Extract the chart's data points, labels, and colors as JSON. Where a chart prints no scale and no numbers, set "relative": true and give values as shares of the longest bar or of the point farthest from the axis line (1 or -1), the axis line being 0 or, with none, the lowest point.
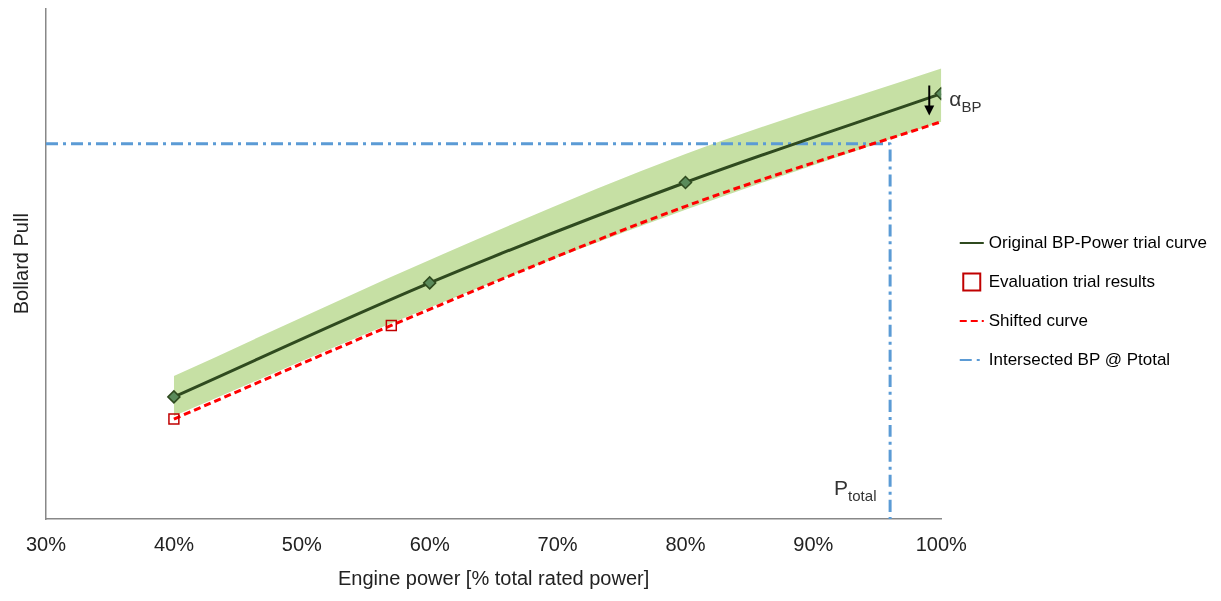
{
  "chart_data": {
    "type": "line",
    "xlabel": "Engine power [% total rated power]",
    "ylabel": "Bollard Pull",
    "relative": true,
    "xlim": [
      30,
      100
    ],
    "xticks": [
      {
        "value": 30,
        "label": "30%"
      },
      {
        "value": 40,
        "label": "40%"
      },
      {
        "value": 50,
        "label": "50%"
      },
      {
        "value": 60,
        "label": "60%"
      },
      {
        "value": 70,
        "label": "70%"
      },
      {
        "value": 80,
        "label": "80%"
      },
      {
        "value": 90,
        "label": "90%"
      },
      {
        "value": 100,
        "label": "100%"
      }
    ],
    "grid": false,
    "legend": "right",
    "series": [
      {
        "name": "Original BP-Power trial curve",
        "color": "#2f4a1f",
        "marker": "diamond",
        "line_style": "solid",
        "x": [
          40,
          60,
          80,
          100
        ],
        "values": [
          0.287,
          0.555,
          0.791,
          1
        ],
        "lower": [
          0.242,
          0.497,
          0.727,
          0.934
        ],
        "upper": [
          0.336,
          0.609,
          0.858,
          1.059
        ]
      },
      {
        "name": "Evaluation trial results",
        "type": "scatter",
        "color": "#c00000",
        "marker": "square",
        "x": [
          40,
          57
        ],
        "values": [
          0.235,
          0.455
        ]
      },
      {
        "name": "Shifted curve",
        "color": "#ff0000",
        "marker": "none",
        "line_style": "dashed",
        "x": [
          40,
          57,
          80,
          100
        ],
        "values": [
          0.235,
          0.455,
          0.735,
          0.934
        ]
      },
      {
        "name": "Intersected BP @ Ptotal",
        "color": "#5b9bd5",
        "marker": "none",
        "line_style": "dashdot",
        "x": [
          30,
          96,
          96
        ],
        "values": [
          0.882,
          0.882,
          0
        ]
      }
    ],
    "annotations": [
      "α$_{BP}$",
      {
        "text": "P$_{total}$",
        "x": 96,
        "y": 0
      }
    ]
  }
}
